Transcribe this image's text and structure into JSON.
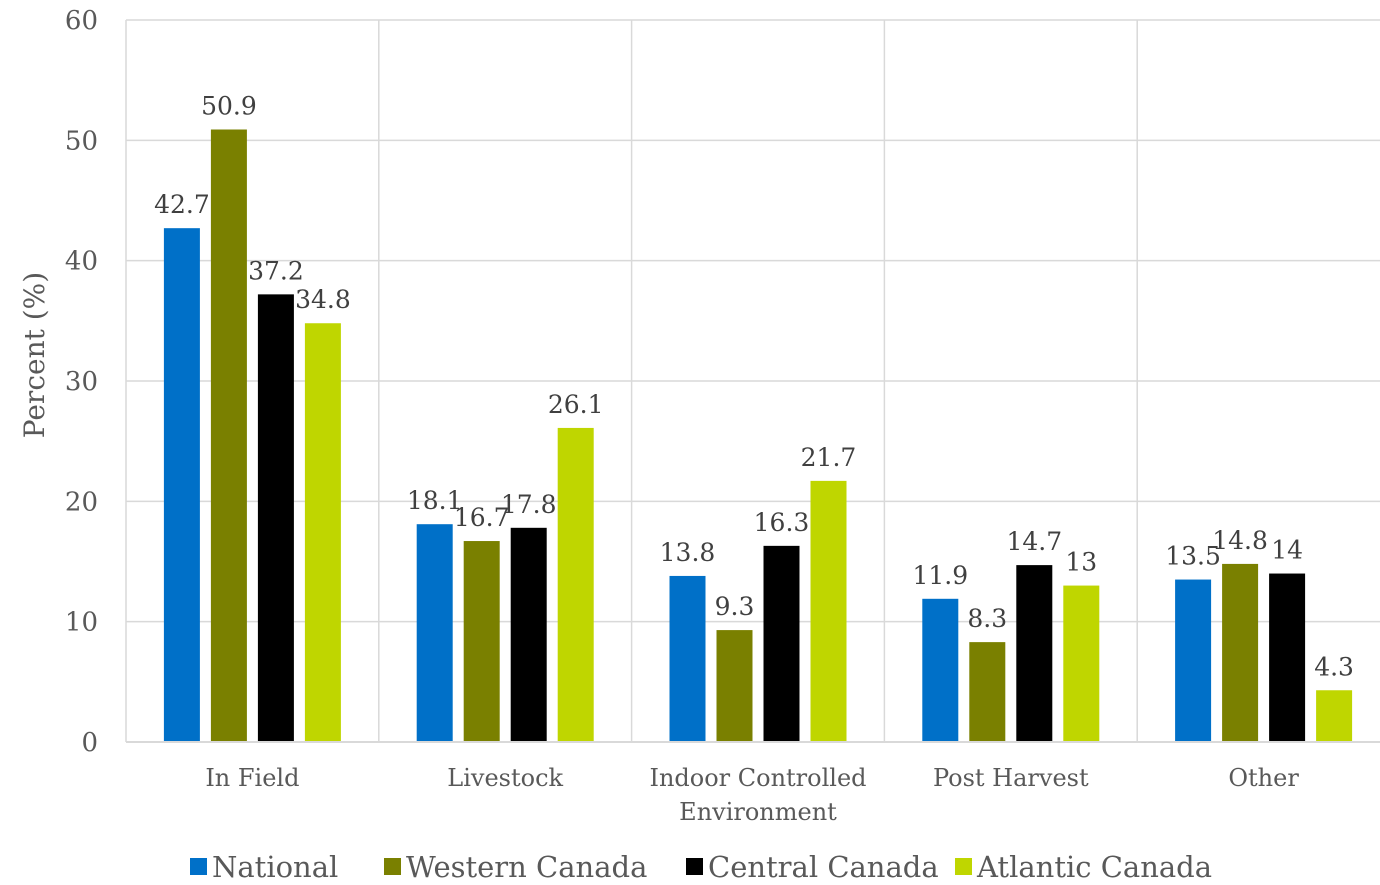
{
  "chart_data": {
    "type": "bar",
    "title": "",
    "xlabel": "",
    "ylabel": "Percent (%)",
    "ylim": [
      0,
      60
    ],
    "yticks": [
      0,
      10,
      20,
      30,
      40,
      50,
      60
    ],
    "grid": true,
    "legend_position": "bottom",
    "categories": [
      "In Field",
      "Livestock",
      "Indoor Controlled Environment",
      "Post Harvest",
      "Other"
    ],
    "series": [
      {
        "name": "National",
        "color": "#0070c8",
        "values": [
          42.7,
          18.1,
          13.8,
          11.9,
          13.5
        ]
      },
      {
        "name": "Western Canada",
        "color": "#7a8000",
        "values": [
          50.9,
          16.7,
          9.3,
          8.3,
          14.8
        ]
      },
      {
        "name": "Central Canada",
        "color": "#000000",
        "values": [
          37.2,
          17.8,
          16.3,
          14.7,
          14
        ]
      },
      {
        "name": "Atlantic Canada",
        "color": "#bfd600",
        "values": [
          34.8,
          26.1,
          21.7,
          13,
          4.3
        ]
      }
    ]
  }
}
